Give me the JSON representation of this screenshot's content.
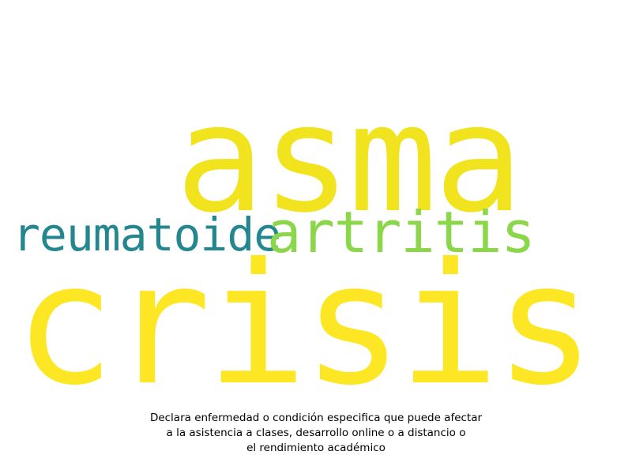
{
  "words": [
    {
      "text": "asma",
      "color": "#f1e41f"
    },
    {
      "text": "crisis",
      "color": "#fde724"
    },
    {
      "text": "artritis",
      "color": "#8bd64a"
    },
    {
      "text": "reumatoide",
      "color": "#24868e"
    }
  ],
  "caption": {
    "lines": [
      "Declara enfermedad o condición especifica que puede afectar",
      "a la asistencia a clases, desarrollo online o a distancio o",
      "el rendimiento académico"
    ]
  }
}
